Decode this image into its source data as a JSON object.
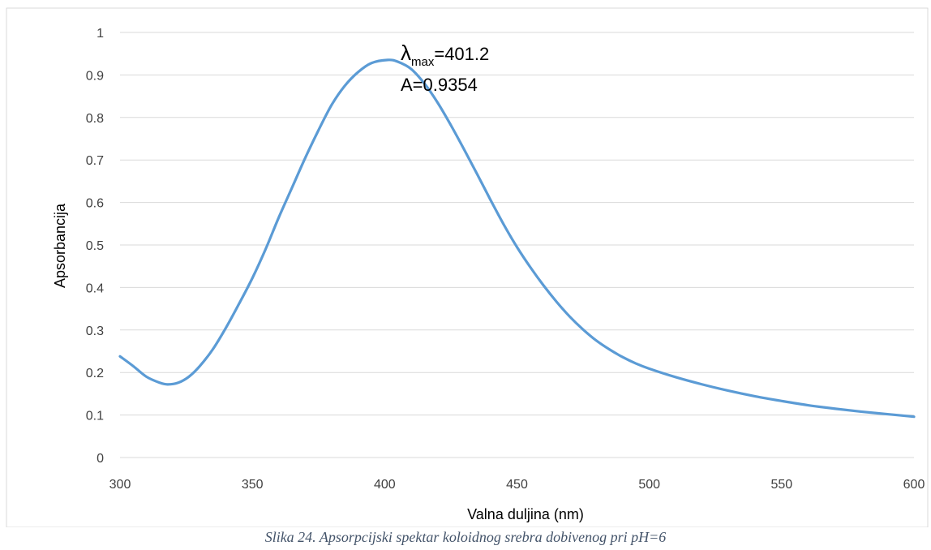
{
  "chart_data": {
    "type": "line",
    "title": "",
    "xlabel": "Valna duljina (nm)",
    "ylabel": "Apsorbancija",
    "xlim": [
      300,
      600
    ],
    "ylim": [
      0,
      1
    ],
    "x_ticks": [
      "300",
      "350",
      "400",
      "450",
      "500",
      "550",
      "600"
    ],
    "y_ticks": [
      "0",
      "0.1",
      "0.2",
      "0.3",
      "0.4",
      "0.5",
      "0.6",
      "0.7",
      "0.8",
      "0.9",
      "1"
    ],
    "grid": true,
    "legend": "none",
    "series": [
      {
        "color": "#5b9bd5",
        "points": [
          [
            300,
            0.238
          ],
          [
            305,
            0.215
          ],
          [
            310,
            0.19
          ],
          [
            315,
            0.176
          ],
          [
            318,
            0.172
          ],
          [
            322,
            0.176
          ],
          [
            326,
            0.19
          ],
          [
            330,
            0.214
          ],
          [
            335,
            0.254
          ],
          [
            340,
            0.305
          ],
          [
            345,
            0.362
          ],
          [
            350,
            0.422
          ],
          [
            355,
            0.49
          ],
          [
            360,
            0.565
          ],
          [
            365,
            0.635
          ],
          [
            370,
            0.705
          ],
          [
            375,
            0.77
          ],
          [
            380,
            0.83
          ],
          [
            385,
            0.875
          ],
          [
            390,
            0.907
          ],
          [
            395,
            0.928
          ],
          [
            401.2,
            0.9354
          ],
          [
            405,
            0.931
          ],
          [
            410,
            0.914
          ],
          [
            415,
            0.88
          ],
          [
            420,
            0.835
          ],
          [
            425,
            0.782
          ],
          [
            430,
            0.725
          ],
          [
            435,
            0.666
          ],
          [
            440,
            0.606
          ],
          [
            445,
            0.548
          ],
          [
            450,
            0.495
          ],
          [
            455,
            0.448
          ],
          [
            460,
            0.405
          ],
          [
            465,
            0.366
          ],
          [
            470,
            0.331
          ],
          [
            475,
            0.301
          ],
          [
            480,
            0.275
          ],
          [
            485,
            0.254
          ],
          [
            490,
            0.236
          ],
          [
            495,
            0.221
          ],
          [
            500,
            0.209
          ],
          [
            510,
            0.189
          ],
          [
            520,
            0.172
          ],
          [
            530,
            0.157
          ],
          [
            540,
            0.144
          ],
          [
            550,
            0.133
          ],
          [
            560,
            0.123
          ],
          [
            570,
            0.115
          ],
          [
            580,
            0.108
          ],
          [
            590,
            0.102
          ],
          [
            600,
            0.096
          ]
        ]
      }
    ],
    "annotation": {
      "symbol": "λ",
      "sub": "max",
      "value_text": "=401.2",
      "line2": "A=0.9354"
    }
  },
  "caption": "Slika 24. Apsorpcijski spektar koloidnog srebra dobivenog pri pH=6",
  "colors": {
    "line": "#5b9bd5",
    "grid": "#d9d9d9",
    "frame": "#d9d9d9"
  }
}
